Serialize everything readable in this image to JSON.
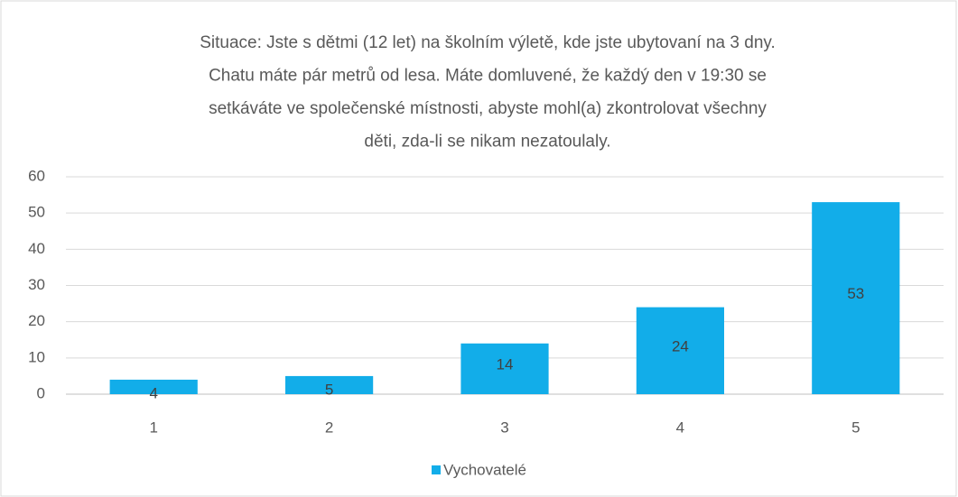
{
  "chart_data": {
    "type": "bar",
    "title": [
      "Situace: Jste s dětmi (12 let) na školním výletě, kde jste ubytovaní na 3 dny.",
      "Chatu máte pár metrů od lesa. Máte domluvené, že každý den v 19:30 se",
      "setkáváte ve společenské místnosti, abyste mohl(a) zkontrolovat všechny",
      "děti, zda-li se nikam nezatoulaly."
    ],
    "categories": [
      "1",
      "2",
      "3",
      "4",
      "5"
    ],
    "series": [
      {
        "name": "Vychovatelé",
        "color": "#12ade9",
        "values": [
          4,
          5,
          14,
          24,
          53
        ]
      }
    ],
    "ylim": [
      0,
      60
    ],
    "yticks": [
      0,
      10,
      20,
      30,
      40,
      50,
      60
    ],
    "grid": true,
    "legend": "bottom"
  }
}
